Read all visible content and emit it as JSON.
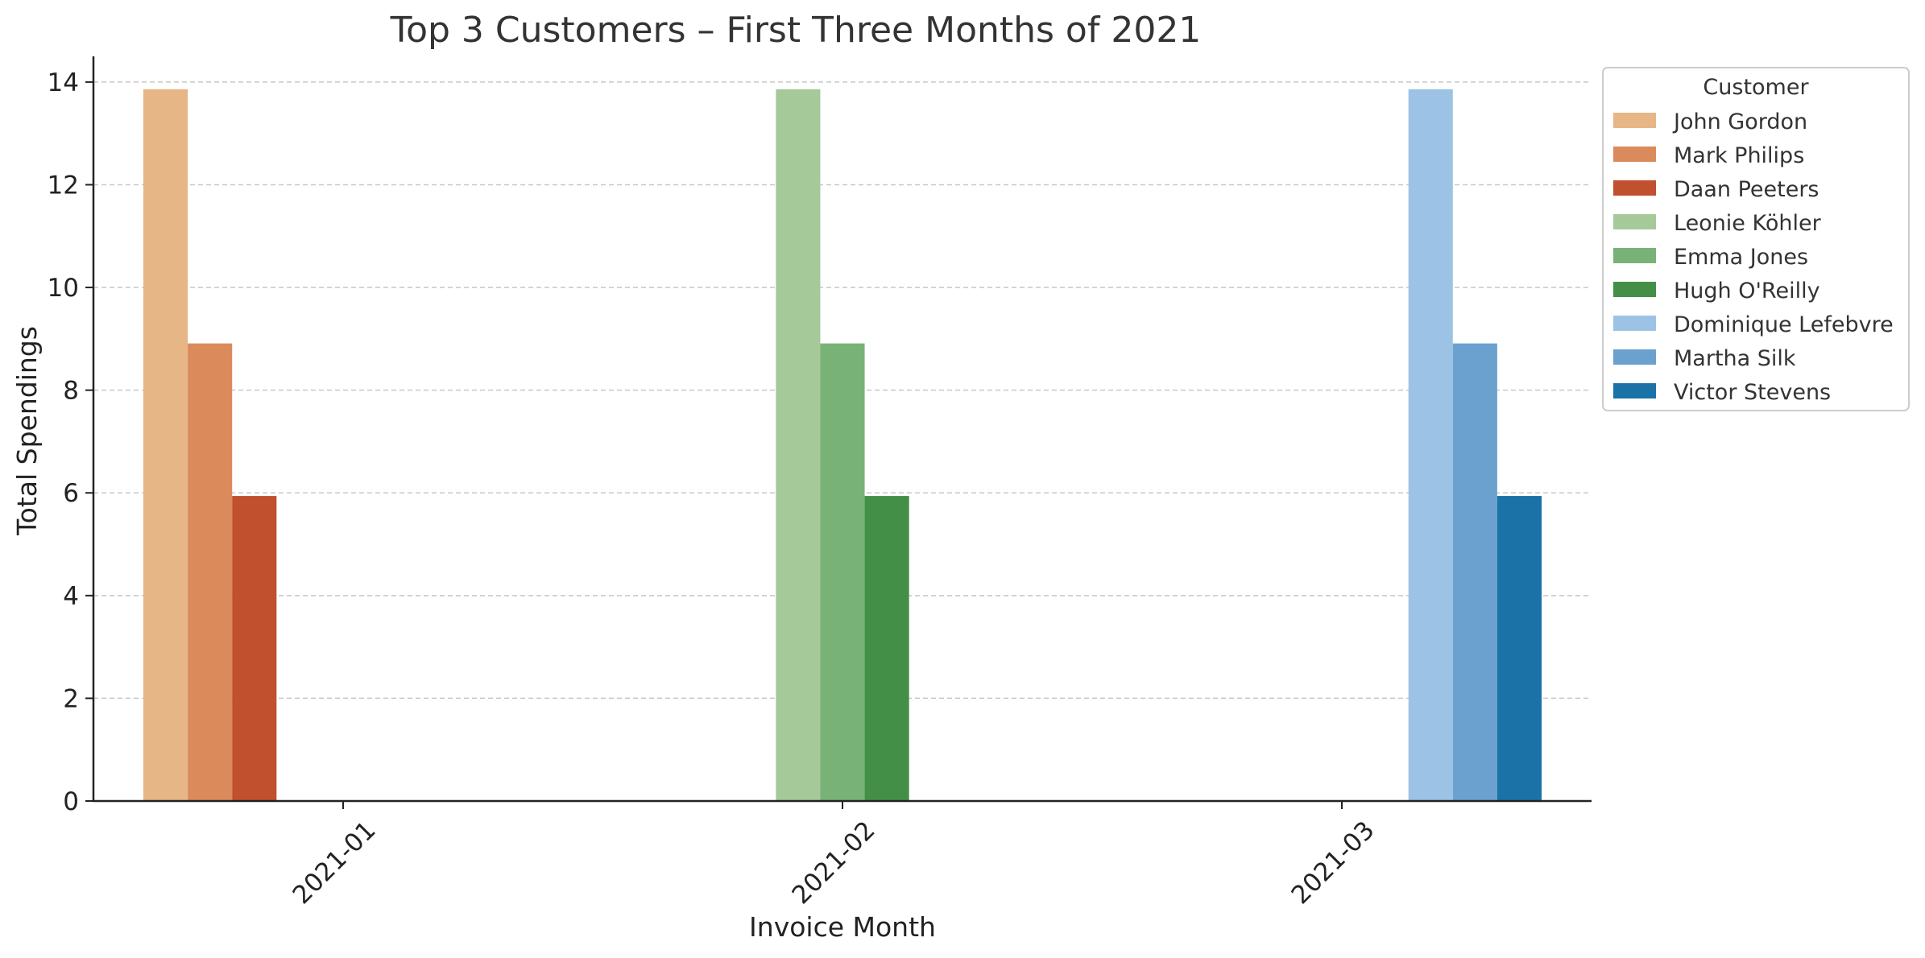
{
  "chart_data": {
    "type": "bar",
    "title": "Top 3 Customers – First Three Months of 2021",
    "xlabel": "Invoice Month",
    "ylabel": "Total Spendings",
    "categories": [
      "2021-01",
      "2021-02",
      "2021-03"
    ],
    "ylim": [
      0,
      14.5
    ],
    "yticks": [
      "0",
      "2",
      "4",
      "6",
      "8",
      "10",
      "12",
      "14"
    ],
    "grid": "horizontal dashed",
    "legend_title": "Customer",
    "legend_position": "outside top-right",
    "series": [
      {
        "name": "John Gordon",
        "color": "#e6b686",
        "values": [
          13.86,
          0,
          0
        ]
      },
      {
        "name": "Mark Philips",
        "color": "#db8a5c",
        "values": [
          8.91,
          0,
          0
        ]
      },
      {
        "name": "Daan Peeters",
        "color": "#c1502e",
        "values": [
          5.94,
          0,
          0
        ]
      },
      {
        "name": "Leonie Köhler",
        "color": "#a6c99a",
        "values": [
          0,
          13.86,
          0
        ]
      },
      {
        "name": "Emma Jones",
        "color": "#78b276",
        "values": [
          0,
          8.91,
          0
        ]
      },
      {
        "name": "Hugh O'Reilly",
        "color": "#448f47",
        "values": [
          0,
          5.94,
          0
        ]
      },
      {
        "name": "Dominique Lefebvre",
        "color": "#9cc3e5",
        "values": [
          0,
          0,
          13.86
        ]
      },
      {
        "name": "Martha Silk",
        "color": "#6aa1cf",
        "values": [
          0,
          0,
          8.91
        ]
      },
      {
        "name": "Victor Stevens",
        "color": "#1a72a6",
        "values": [
          0,
          0,
          5.94
        ]
      }
    ]
  }
}
